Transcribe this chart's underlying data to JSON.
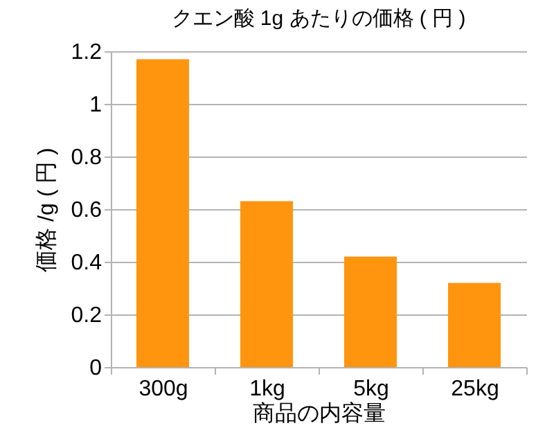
{
  "chart_data": {
    "type": "bar",
    "title": "クエン酸 1g あたりの価格 ( 円 )",
    "xlabel": "商品の内容量",
    "ylabel": "価格 /g ( 円 )",
    "categories": [
      "300g",
      "1kg",
      "5kg",
      "25kg"
    ],
    "values": [
      1.17,
      0.63,
      0.42,
      0.32
    ],
    "color": "#ff950e",
    "ylim": [
      0,
      1.2
    ],
    "yticks": [
      0,
      0.2,
      0.4,
      0.6,
      0.8,
      1,
      1.2
    ],
    "grid": "y"
  }
}
